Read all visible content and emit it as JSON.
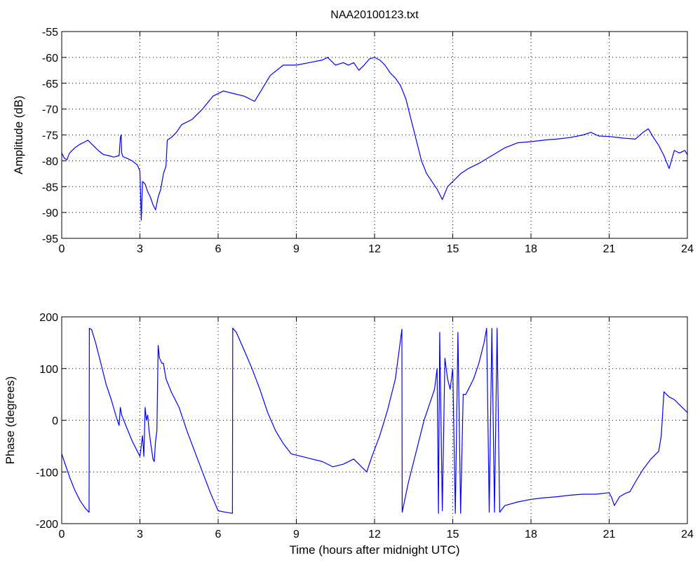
{
  "figure": {
    "title": "NAA20100123.txt"
  },
  "colors": {
    "line": "#0000ff",
    "axes": "#000000",
    "grid": "#000000",
    "background": "#ffffff"
  },
  "chart_data": [
    {
      "type": "line",
      "title": "NAA20100123.txt",
      "xlabel": "",
      "ylabel": "Amplitude (dB)",
      "xlim": [
        0,
        24
      ],
      "ylim": [
        -95,
        -55
      ],
      "xticks": [
        0,
        3,
        6,
        9,
        12,
        15,
        18,
        21,
        24
      ],
      "yticks": [
        -95,
        -90,
        -85,
        -80,
        -75,
        -70,
        -65,
        -60,
        -55
      ],
      "grid": true,
      "series": [
        {
          "color": "#0000ff",
          "x": [
            0,
            0.1,
            0.2,
            0.3,
            0.5,
            0.7,
            0.9,
            1.0,
            1.2,
            1.4,
            1.6,
            1.8,
            2.0,
            2.2,
            2.25,
            2.28,
            2.3,
            2.35,
            2.5,
            2.7,
            2.9,
            3.0,
            3.05,
            3.1,
            3.2,
            3.3,
            3.4,
            3.5,
            3.6,
            3.7,
            3.8,
            3.9,
            4.0,
            4.05,
            4.2,
            4.4,
            4.6,
            5.0,
            5.4,
            5.8,
            6.2,
            6.6,
            7.0,
            7.4,
            7.7,
            8.0,
            8.5,
            9.0,
            9.5,
            10.0,
            10.2,
            10.5,
            10.8,
            11.0,
            11.2,
            11.4,
            11.6,
            11.8,
            12.0,
            12.2,
            12.4,
            12.6,
            12.8,
            13.0,
            13.2,
            13.4,
            13.6,
            13.8,
            14.0,
            14.2,
            14.4,
            14.6,
            14.8,
            15.0,
            15.3,
            15.6,
            16.0,
            16.5,
            17.0,
            17.5,
            18.0,
            18.5,
            19.0,
            19.5,
            20.0,
            20.3,
            20.6,
            21.0,
            21.5,
            22.0,
            22.3,
            22.5,
            22.7,
            22.9,
            23.1,
            23.3,
            23.5,
            23.7,
            23.9,
            24.0
          ],
          "y": [
            -78.5,
            -79.5,
            -79.8,
            -78.5,
            -77.5,
            -76.8,
            -76.3,
            -76.0,
            -77.0,
            -78.0,
            -78.8,
            -79.0,
            -79.3,
            -79.0,
            -75.5,
            -75.0,
            -78.5,
            -79.2,
            -79.5,
            -80.0,
            -80.8,
            -82.0,
            -91.5,
            -84.0,
            -84.5,
            -86.0,
            -87.0,
            -88.5,
            -89.5,
            -87.0,
            -85.5,
            -82.5,
            -81.0,
            -76.0,
            -75.5,
            -74.5,
            -73.0,
            -72.0,
            -70.0,
            -67.5,
            -66.5,
            -67.0,
            -67.5,
            -68.5,
            -66.0,
            -63.5,
            -61.5,
            -61.5,
            -61.0,
            -60.5,
            -60.0,
            -61.5,
            -61.0,
            -61.5,
            -61.0,
            -62.5,
            -61.5,
            -60.3,
            -60.0,
            -60.5,
            -61.5,
            -63.0,
            -64.0,
            -65.5,
            -68.0,
            -72.0,
            -76.0,
            -80.0,
            -82.5,
            -84.0,
            -85.5,
            -87.5,
            -85.0,
            -84.0,
            -82.5,
            -81.5,
            -80.5,
            -79.0,
            -77.5,
            -76.5,
            -76.3,
            -76.0,
            -75.8,
            -75.5,
            -75.0,
            -74.5,
            -75.2,
            -75.3,
            -75.6,
            -75.8,
            -74.5,
            -73.8,
            -75.5,
            -77.0,
            -79.0,
            -81.5,
            -78.0,
            -78.5,
            -78.0,
            -78.8
          ]
        }
      ]
    },
    {
      "type": "line",
      "title": "",
      "xlabel": "Time (hours after midnight UTC)",
      "ylabel": "Phase (degrees)",
      "xlim": [
        0,
        24
      ],
      "ylim": [
        -200,
        200
      ],
      "xticks": [
        0,
        3,
        6,
        9,
        12,
        15,
        18,
        21,
        24
      ],
      "yticks": [
        -200,
        -100,
        0,
        100,
        200
      ],
      "grid": true,
      "series": [
        {
          "color": "#0000ff",
          "x": [
            0,
            0.1,
            0.3,
            0.5,
            0.7,
            0.9,
            1.05,
            1.06,
            1.15,
            1.3,
            1.5,
            1.7,
            1.9,
            2.1,
            2.2,
            2.25,
            2.3,
            2.5,
            2.7,
            2.9,
            3.0,
            3.1,
            3.15,
            3.2,
            3.25,
            3.3,
            3.35,
            3.4,
            3.5,
            3.55,
            3.6,
            3.65,
            3.7,
            3.75,
            3.8,
            3.85,
            3.9,
            4.0,
            4.2,
            4.5,
            4.8,
            5.1,
            5.4,
            5.7,
            6.0,
            6.3,
            6.55,
            6.56,
            6.7,
            7.0,
            7.3,
            7.6,
            7.9,
            8.2,
            8.5,
            8.8,
            9.2,
            9.6,
            10.0,
            10.4,
            10.8,
            11.2,
            11.5,
            11.7,
            11.9,
            12.2,
            12.5,
            12.8,
            13.05,
            13.06,
            13.3,
            13.6,
            13.9,
            14.1,
            14.3,
            14.4,
            14.45,
            14.5,
            14.6,
            14.7,
            14.8,
            14.9,
            15.0,
            15.1,
            15.2,
            15.3,
            15.4,
            15.5,
            15.6,
            15.8,
            16.0,
            16.2,
            16.3,
            16.4,
            16.5,
            16.6,
            16.7,
            16.8,
            17.0,
            17.5,
            18.0,
            18.5,
            19.0,
            19.5,
            20.0,
            20.5,
            21.0,
            21.1,
            21.2,
            21.4,
            21.6,
            21.8,
            22.0,
            22.3,
            22.6,
            22.9,
            23.0,
            23.1,
            23.3,
            23.5,
            23.7,
            23.9,
            24.0
          ],
          "y": [
            -65,
            -80,
            -110,
            -135,
            -155,
            -170,
            -178,
            178,
            175,
            150,
            110,
            70,
            40,
            5,
            -10,
            25,
            10,
            -15,
            -40,
            -60,
            -70,
            -30,
            -70,
            25,
            0,
            10,
            -20,
            -40,
            -75,
            -80,
            -40,
            -20,
            145,
            120,
            115,
            110,
            110,
            80,
            55,
            25,
            -20,
            -60,
            -100,
            -140,
            -175,
            -178,
            -180,
            178,
            170,
            135,
            100,
            60,
            15,
            -20,
            -45,
            -65,
            -70,
            -75,
            -80,
            -90,
            -85,
            -75,
            -90,
            -100,
            -70,
            -30,
            20,
            80,
            176,
            -178,
            -120,
            -60,
            0,
            30,
            60,
            100,
            -180,
            170,
            -175,
            120,
            80,
            60,
            100,
            -180,
            170,
            -180,
            50,
            50,
            60,
            80,
            110,
            150,
            178,
            -178,
            178,
            -178,
            178,
            -178,
            -165,
            -158,
            -153,
            -150,
            -148,
            -145,
            -143,
            -143,
            -140,
            -150,
            -165,
            -148,
            -142,
            -138,
            -120,
            -95,
            -75,
            -60,
            -30,
            55,
            45,
            40,
            30,
            20,
            15
          ]
        }
      ]
    }
  ]
}
